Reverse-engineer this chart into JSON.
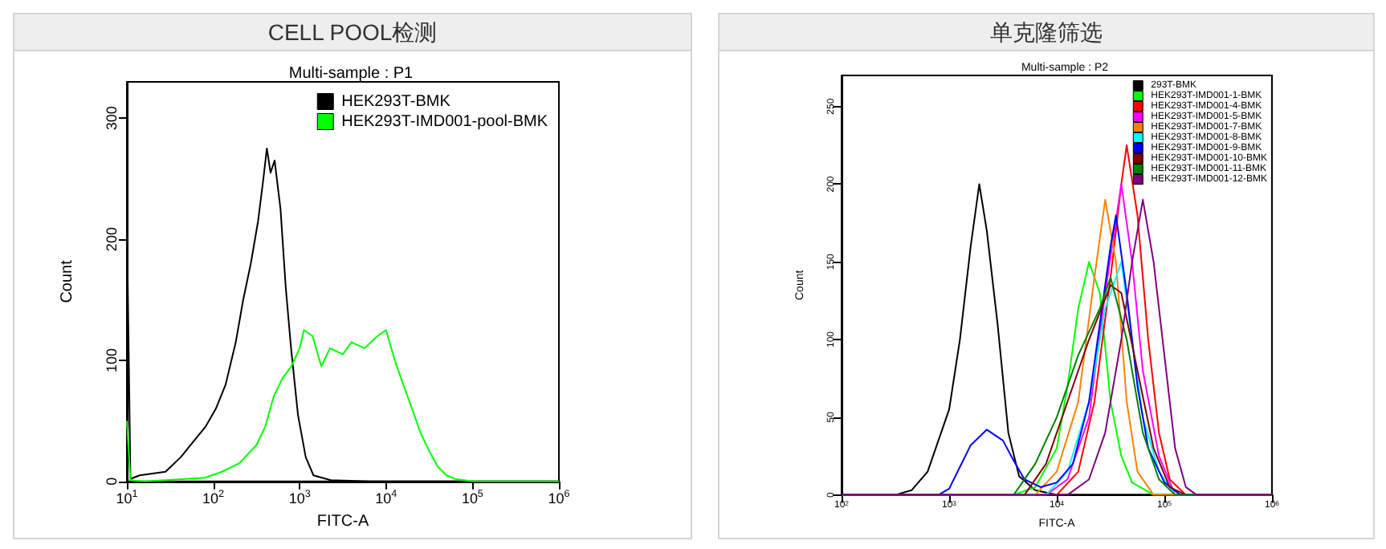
{
  "chart_data": [
    {
      "type": "line",
      "title": "CELL POOL检测",
      "subtitle": "Multi-sample : P1",
      "xlabel": "FITC-A",
      "ylabel": "Count",
      "log": "x",
      "legend": "top right",
      "marker": "none",
      "xlim": [
        10,
        1000000
      ],
      "ylim": [
        0,
        330
      ],
      "xticks": [
        {
          "value": 10,
          "label": "10$^{1}$"
        },
        {
          "value": 100,
          "label": "10$^{2}$"
        },
        {
          "value": 1000,
          "label": "10$^{3}$"
        },
        {
          "value": 10000,
          "label": "10$^{4}$"
        },
        {
          "value": 100000,
          "label": "10$^{5}$"
        },
        {
          "value": 1000000,
          "label": "10$^{6}$"
        }
      ],
      "yticks": [
        0,
        100,
        200,
        300
      ],
      "series": [
        {
          "name": "HEK293T-BMK",
          "color": "#000000",
          "x": [
            10,
            11,
            14,
            28,
            42,
            62,
            81,
            107,
            139,
            182,
            222,
            272,
            330,
            380,
            417,
            460,
            513,
            600,
            690,
            795,
            955,
            1175,
            1445,
            2290,
            6600,
            1000000
          ],
          "values": [
            215,
            2,
            5,
            8,
            20,
            35,
            45,
            60,
            80,
            115,
            150,
            180,
            215,
            250,
            275,
            255,
            265,
            225,
            160,
            110,
            55,
            20,
            5,
            1,
            0,
            0
          ]
        },
        {
          "name": "HEK293T-IMD001-pool-BMK",
          "color": "#00ff00",
          "x": [
            10,
            11,
            16,
            80,
            126,
            200,
            316,
            398,
            500,
            630,
            800,
            1000,
            1120,
            1410,
            1780,
            2240,
            3160,
            3980,
            5620,
            7940,
            10000,
            12600,
            15800,
            20000,
            25100,
            31600,
            39800,
            50100,
            63100,
            100000,
            1000000
          ],
          "values": [
            50,
            1,
            0,
            3,
            8,
            15,
            30,
            45,
            70,
            85,
            95,
            110,
            125,
            120,
            95,
            110,
            105,
            115,
            110,
            120,
            125,
            100,
            80,
            60,
            40,
            25,
            12,
            5,
            2,
            0,
            0
          ]
        }
      ]
    },
    {
      "type": "line",
      "title": "单克隆筛选",
      "subtitle": "Multi-sample : P2",
      "xlabel": "FITC-A",
      "ylabel": "Count",
      "log": "x",
      "legend": "top right",
      "marker": "none",
      "xlim": [
        100,
        1000000
      ],
      "ylim": [
        0,
        270
      ],
      "xticks": [
        {
          "value": 100,
          "label": "10$^{2}$"
        },
        {
          "value": 1000,
          "label": "10$^{3}$"
        },
        {
          "value": 10000,
          "label": "10$^{4}$"
        },
        {
          "value": 100000,
          "label": "10$^{5}$"
        },
        {
          "value": 1000000,
          "label": "10$^{6}$"
        }
      ],
      "yticks": [
        0,
        50,
        100,
        150,
        200,
        250
      ],
      "series": [
        {
          "name": "293T-BMK",
          "color": "#000000",
          "x": [
            100,
            316,
            447,
            631,
            794,
            1000,
            1259,
            1585,
            1905,
            2239,
            2818,
            3548,
            4467,
            6310,
            10000,
            1000000
          ],
          "values": [
            0,
            0,
            3,
            15,
            35,
            55,
            100,
            160,
            200,
            170,
            110,
            40,
            12,
            3,
            0,
            0
          ]
        },
        {
          "name": "HEK293T-IMD001-1-BMK",
          "color": "#00ff00",
          "x": [
            100,
            3981,
            6310,
            10000,
            12589,
            15849,
            19953,
            25119,
            31623,
            39811,
            50119,
            79433,
            1000000
          ],
          "values": [
            0,
            0,
            5,
            30,
            70,
            120,
            150,
            130,
            60,
            25,
            8,
            0,
            0
          ]
        },
        {
          "name": "HEK293T-IMD001-4-BMK",
          "color": "#ff0000",
          "x": [
            100,
            10000,
            15849,
            22387,
            31623,
            39811,
            44668,
            56234,
            70795,
            89125,
            112202,
            158489,
            1000000
          ],
          "values": [
            0,
            0,
            15,
            60,
            140,
            200,
            225,
            180,
            100,
            40,
            10,
            0,
            0
          ]
        },
        {
          "name": "HEK293T-IMD001-5-BMK",
          "color": "#ff00ff",
          "x": [
            100,
            7943,
            12589,
            19953,
            28184,
            39811,
            50119,
            63096,
            89125,
            125893,
            1000000
          ],
          "values": [
            0,
            0,
            10,
            50,
            130,
            200,
            150,
            80,
            25,
            0,
            0
          ]
        },
        {
          "name": "HEK293T-IMD001-7-BMK",
          "color": "#ff8000",
          "x": [
            100,
            6310,
            10000,
            15849,
            22387,
            28184,
            35481,
            44668,
            56234,
            79433,
            1000000
          ],
          "values": [
            0,
            0,
            15,
            60,
            140,
            190,
            150,
            60,
            15,
            0,
            0
          ]
        },
        {
          "name": "HEK293T-IMD001-8-BMK",
          "color": "#00ffff",
          "x": [
            100,
            7943,
            12589,
            19953,
            28184,
            39811,
            50119,
            63096,
            89125,
            125893,
            1000000
          ],
          "values": [
            0,
            0,
            15,
            60,
            120,
            150,
            100,
            50,
            15,
            0,
            0
          ]
        },
        {
          "name": "HEK293T-IMD001-9-BMK",
          "color": "#0000ff",
          "x": [
            100,
            794,
            1000,
            1259,
            1585,
            2239,
            3162,
            3981,
            5012,
            7079,
            10000,
            14125,
            19953,
            25119,
            31623,
            35481,
            44668,
            56234,
            70795,
            100000,
            141254,
            1000000
          ],
          "values": [
            0,
            0,
            4,
            18,
            32,
            42,
            35,
            22,
            10,
            5,
            8,
            20,
            60,
            110,
            160,
            180,
            130,
            70,
            30,
            8,
            0,
            0
          ]
        },
        {
          "name": "HEK293T-IMD001-10-BMK",
          "color": "#800000",
          "x": [
            100,
            5012,
            7943,
            12589,
            19953,
            31623,
            39811,
            56234,
            79433,
            112202,
            158489,
            1000000
          ],
          "values": [
            0,
            0,
            20,
            60,
            100,
            135,
            130,
            80,
            30,
            5,
            0,
            0
          ]
        },
        {
          "name": "HEK293T-IMD001-11-BMK",
          "color": "#008000",
          "x": [
            100,
            3981,
            6310,
            10000,
            15849,
            25119,
            31623,
            44668,
            63096,
            89125,
            125893,
            1000000
          ],
          "values": [
            0,
            0,
            20,
            50,
            90,
            120,
            140,
            100,
            40,
            10,
            0,
            0
          ]
        },
        {
          "name": "HEK293T-IMD001-12-BMK",
          "color": "#800080",
          "x": [
            100,
            12589,
            19953,
            28184,
            39811,
            50119,
            63096,
            79433,
            100000,
            125893,
            158489,
            199526,
            1000000
          ],
          "values": [
            0,
            0,
            10,
            40,
            100,
            150,
            190,
            150,
            90,
            30,
            5,
            0,
            0
          ]
        }
      ]
    }
  ]
}
